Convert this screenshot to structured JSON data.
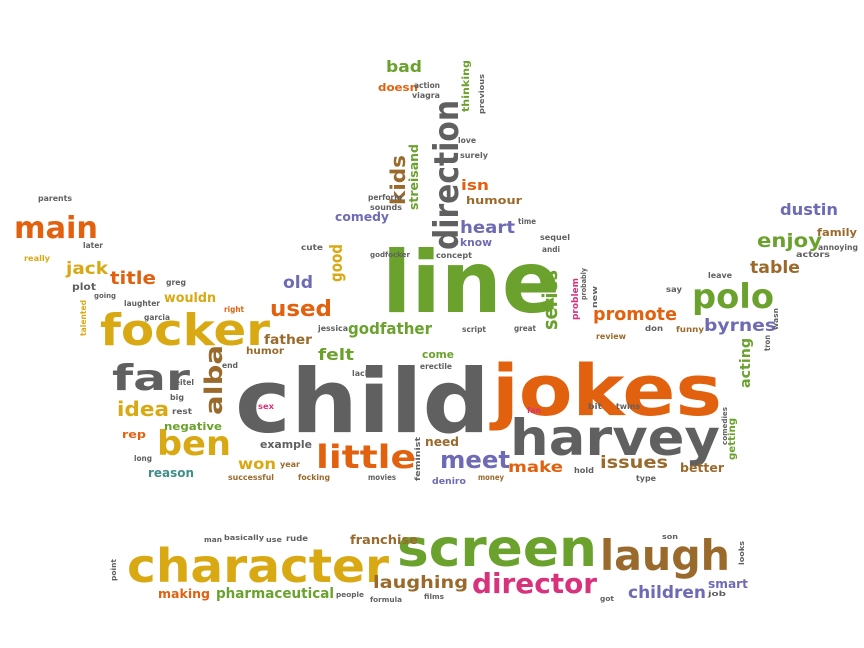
{
  "palette": {
    "orange": "#e2610f",
    "green": "#6aa22d",
    "gray": "#606060",
    "gold": "#d9a914",
    "purple": "#6e6bb5",
    "teal": "#3f8f89",
    "pink": "#d8327c",
    "brown": "#9a6a2c"
  },
  "words": [
    {
      "text": "child",
      "color": "gray"
    },
    {
      "text": "line",
      "color": "green"
    },
    {
      "text": "jokes",
      "color": "orange"
    },
    {
      "text": "screen",
      "color": "green"
    },
    {
      "text": "character",
      "color": "gold"
    },
    {
      "text": "harvey",
      "color": "gray"
    },
    {
      "text": "laugh",
      "color": "brown"
    },
    {
      "text": "focker",
      "color": "gold"
    },
    {
      "text": "direction",
      "color": "gray"
    },
    {
      "text": "director",
      "color": "pink"
    },
    {
      "text": "ben",
      "color": "gold"
    },
    {
      "text": "little",
      "color": "orange"
    },
    {
      "text": "far",
      "color": "gray"
    },
    {
      "text": "polo",
      "color": "green"
    },
    {
      "text": "main",
      "color": "orange"
    },
    {
      "text": "alba",
      "color": "brown"
    },
    {
      "text": "meet",
      "color": "purple"
    },
    {
      "text": "laughing",
      "color": "brown"
    },
    {
      "text": "children",
      "color": "purple"
    },
    {
      "text": "idea",
      "color": "gold"
    },
    {
      "text": "promote",
      "color": "orange"
    },
    {
      "text": "used",
      "color": "orange"
    },
    {
      "text": "series",
      "color": "green"
    },
    {
      "text": "kids",
      "color": "brown"
    },
    {
      "text": "issues",
      "color": "brown"
    },
    {
      "text": "old",
      "color": "purple"
    },
    {
      "text": "byrnes",
      "color": "purple"
    },
    {
      "text": "enjoy",
      "color": "green"
    },
    {
      "text": "table",
      "color": "brown"
    },
    {
      "text": "dustin",
      "color": "purple"
    },
    {
      "text": "heart",
      "color": "purple"
    },
    {
      "text": "title",
      "color": "orange"
    },
    {
      "text": "jack",
      "color": "gold"
    },
    {
      "text": "felt",
      "color": "green"
    },
    {
      "text": "godfather",
      "color": "green"
    },
    {
      "text": "good",
      "color": "gold"
    },
    {
      "text": "acting",
      "color": "green"
    },
    {
      "text": "make",
      "color": "orange"
    },
    {
      "text": "won",
      "color": "gold"
    },
    {
      "text": "bad",
      "color": "green"
    },
    {
      "text": "wouldn",
      "color": "gold"
    },
    {
      "text": "franchise",
      "color": "brown"
    },
    {
      "text": "pharmaceutical",
      "color": "green"
    },
    {
      "text": "making",
      "color": "orange"
    },
    {
      "text": "smart",
      "color": "purple"
    },
    {
      "text": "better",
      "color": "brown"
    },
    {
      "text": "isn",
      "color": "orange"
    },
    {
      "text": "comedy",
      "color": "purple"
    },
    {
      "text": "streisand",
      "color": "green"
    },
    {
      "text": "father",
      "color": "brown"
    },
    {
      "text": "humour",
      "color": "brown"
    },
    {
      "text": "need",
      "color": "brown"
    },
    {
      "text": "come",
      "color": "green"
    },
    {
      "text": "reason",
      "color": "teal"
    },
    {
      "text": "negative",
      "color": "green"
    },
    {
      "text": "example",
      "color": "gray"
    },
    {
      "text": "rep",
      "color": "orange"
    },
    {
      "text": "getting",
      "color": "green"
    },
    {
      "text": "humor",
      "color": "brown"
    },
    {
      "text": "know",
      "color": "purple"
    },
    {
      "text": "thinking",
      "color": "green"
    },
    {
      "text": "doesn",
      "color": "orange"
    },
    {
      "text": "problem",
      "color": "pink"
    },
    {
      "text": "family",
      "color": "brown"
    },
    {
      "text": "deniro",
      "color": "purple"
    },
    {
      "text": "plot",
      "color": "gray"
    },
    {
      "text": "greg",
      "color": "gray"
    },
    {
      "text": "laughter",
      "color": "gray"
    },
    {
      "text": "garcia",
      "color": "gray"
    },
    {
      "text": "talented",
      "color": "gold"
    },
    {
      "text": "really",
      "color": "gold"
    },
    {
      "text": "later",
      "color": "gray"
    },
    {
      "text": "parents",
      "color": "gray"
    },
    {
      "text": "right",
      "color": "orange"
    },
    {
      "text": "end",
      "color": "gray"
    },
    {
      "text": "keitel",
      "color": "gray"
    },
    {
      "text": "big",
      "color": "gray"
    },
    {
      "text": "rest",
      "color": "gray"
    },
    {
      "text": "long",
      "color": "gray"
    },
    {
      "text": "sex",
      "color": "pink"
    },
    {
      "text": "successful",
      "color": "brown"
    },
    {
      "text": "year",
      "color": "brown"
    },
    {
      "text": "focking",
      "color": "brown"
    },
    {
      "text": "movies",
      "color": "gray"
    },
    {
      "text": "feminist",
      "color": "gray"
    },
    {
      "text": "money",
      "color": "brown"
    },
    {
      "text": "hold",
      "color": "gray"
    },
    {
      "text": "type",
      "color": "gray"
    },
    {
      "text": "comedies",
      "color": "gray"
    },
    {
      "text": "twins",
      "color": "gray"
    },
    {
      "text": "bit",
      "color": "gray"
    },
    {
      "text": "fan",
      "color": "pink"
    },
    {
      "text": "lack",
      "color": "gray"
    },
    {
      "text": "erectile",
      "color": "gray"
    },
    {
      "text": "jessica",
      "color": "gray"
    },
    {
      "text": "script",
      "color": "gray"
    },
    {
      "text": "great",
      "color": "gray"
    },
    {
      "text": "review",
      "color": "brown"
    },
    {
      "text": "don",
      "color": "gray"
    },
    {
      "text": "funny",
      "color": "brown"
    },
    {
      "text": "new",
      "color": "gray"
    },
    {
      "text": "probably",
      "color": "gray"
    },
    {
      "text": "say",
      "color": "gray"
    },
    {
      "text": "leave",
      "color": "gray"
    },
    {
      "text": "wasn",
      "color": "gray"
    },
    {
      "text": "tron",
      "color": "gray"
    },
    {
      "text": "annoying",
      "color": "gray"
    },
    {
      "text": "actors",
      "color": "gray"
    },
    {
      "text": "sequel",
      "color": "gray"
    },
    {
      "text": "andi",
      "color": "gray"
    },
    {
      "text": "time",
      "color": "gray"
    },
    {
      "text": "concept",
      "color": "gray"
    },
    {
      "text": "cute",
      "color": "gray"
    },
    {
      "text": "godfocker",
      "color": "gray"
    },
    {
      "text": "perform",
      "color": "gray"
    },
    {
      "text": "sounds",
      "color": "gray"
    },
    {
      "text": "action",
      "color": "gray"
    },
    {
      "text": "viagra",
      "color": "gray"
    },
    {
      "text": "previous",
      "color": "gray"
    },
    {
      "text": "love",
      "color": "gray"
    },
    {
      "text": "surely",
      "color": "gray"
    },
    {
      "text": "going",
      "color": "gray"
    },
    {
      "text": "man",
      "color": "gray"
    },
    {
      "text": "basically",
      "color": "gray"
    },
    {
      "text": "use",
      "color": "gray"
    },
    {
      "text": "rude",
      "color": "gray"
    },
    {
      "text": "point",
      "color": "gray"
    },
    {
      "text": "people",
      "color": "gray"
    },
    {
      "text": "formula",
      "color": "gray"
    },
    {
      "text": "films",
      "color": "gray"
    },
    {
      "text": "got",
      "color": "gray"
    },
    {
      "text": "job",
      "color": "gray"
    },
    {
      "text": "son",
      "color": "gray"
    },
    {
      "text": "looks",
      "color": "gray"
    }
  ]
}
